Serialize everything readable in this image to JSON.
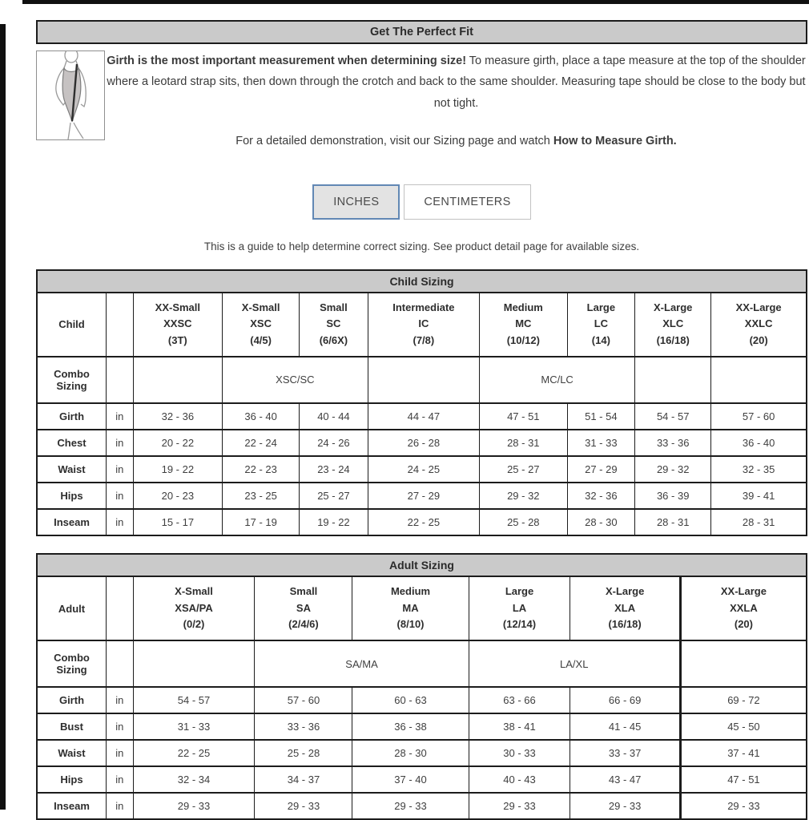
{
  "header": {
    "title": "Get The Perfect Fit"
  },
  "intro": {
    "lead_bold": "Girth is the most important measurement when determining size!",
    "lead_rest": " To measure girth, place a tape measure at the top of the shoulder where a leotard strap sits, then down through the crotch and back to the same shoulder. Measuring tape should be close to the body but not tight.",
    "demo_text": "For a detailed demonstration, visit our Sizing page and watch ",
    "demo_bold": "How to Measure Girth.",
    "figure_alt": "girth-measurement-figure"
  },
  "unit_toggle": {
    "inches_label": "INCHES",
    "centimeters_label": "CENTIMETERS",
    "selected": "INCHES"
  },
  "guide_note": "This is a guide to help determine correct sizing. See product detail page for available sizes.",
  "child_table": {
    "title": "Child Sizing",
    "row_label": "Child",
    "combo_label": "Combo Sizing",
    "columns": [
      [
        "XX-Small",
        "XXSC",
        "(3T)"
      ],
      [
        "X-Small",
        "XSC",
        "(4/5)"
      ],
      [
        "Small",
        "SC",
        "(6/6X)"
      ],
      [
        "Intermediate",
        "IC",
        "(7/8)"
      ],
      [
        "Medium",
        "MC",
        "(10/12)"
      ],
      [
        "Large",
        "LC",
        "(14)"
      ],
      [
        "X-Large",
        "XLC",
        "(16/18)"
      ],
      [
        "XX-Large",
        "XXLC",
        "(20)"
      ]
    ],
    "combo_cells": [
      {
        "span": 1,
        "text": ""
      },
      {
        "span": 2,
        "text": "XSC/SC"
      },
      {
        "span": 1,
        "text": ""
      },
      {
        "span": 2,
        "text": "MC/LC"
      },
      {
        "span": 1,
        "text": ""
      },
      {
        "span": 1,
        "text": ""
      }
    ],
    "rows": [
      {
        "label": "Girth",
        "unit": "in",
        "values": [
          "32 - 36",
          "36 - 40",
          "40 - 44",
          "44 - 47",
          "47 - 51",
          "51 - 54",
          "54 - 57",
          "57 - 60"
        ]
      },
      {
        "label": "Chest",
        "unit": "in",
        "values": [
          "20 - 22",
          "22 - 24",
          "24 - 26",
          "26 - 28",
          "28 - 31",
          "31 - 33",
          "33 - 36",
          "36 - 40"
        ]
      },
      {
        "label": "Waist",
        "unit": "in",
        "values": [
          "19 - 22",
          "22 - 23",
          "23 - 24",
          "24 - 25",
          "25 - 27",
          "27 - 29",
          "29 - 32",
          "32 - 35"
        ]
      },
      {
        "label": "Hips",
        "unit": "in",
        "values": [
          "20 - 23",
          "23 - 25",
          "25 - 27",
          "27 - 29",
          "29 - 32",
          "32 - 36",
          "36 - 39",
          "39 - 41"
        ]
      },
      {
        "label": "Inseam",
        "unit": "in",
        "values": [
          "15 - 17",
          "17 - 19",
          "19 - 22",
          "22 - 25",
          "25 - 28",
          "28 - 30",
          "28 - 31",
          "28 - 31"
        ]
      }
    ]
  },
  "adult_table": {
    "title": "Adult Sizing",
    "row_label": "Adult",
    "combo_label": "Combo Sizing",
    "columns": [
      [
        "X-Small",
        "XSA/PA",
        "(0/2)"
      ],
      [
        "Small",
        "SA",
        "(2/4/6)"
      ],
      [
        "Medium",
        "MA",
        "(8/10)"
      ],
      [
        "Large",
        "LA",
        "(12/14)"
      ],
      [
        "X-Large",
        "XLA",
        "(16/18)"
      ],
      [
        "XX-Large",
        "XXLA",
        "(20)"
      ]
    ],
    "combo_cells": [
      {
        "span": 1,
        "text": ""
      },
      {
        "span": 2,
        "text": "SA/MA"
      },
      {
        "span": 2,
        "text": "LA/XL"
      },
      {
        "span": 1,
        "text": ""
      }
    ],
    "rows": [
      {
        "label": "Girth",
        "unit": "in",
        "values": [
          "54 - 57",
          "57 - 60",
          "60 - 63",
          "63 - 66",
          "66 - 69",
          "69 - 72"
        ]
      },
      {
        "label": "Bust",
        "unit": "in",
        "values": [
          "31 - 33",
          "33 - 36",
          "36 - 38",
          "38 - 41",
          "41 - 45",
          "45 - 50"
        ]
      },
      {
        "label": "Waist",
        "unit": "in",
        "values": [
          "22 - 25",
          "25 - 28",
          "28 - 30",
          "30 - 33",
          "33 - 37",
          "37 - 41"
        ]
      },
      {
        "label": "Hips",
        "unit": "in",
        "values": [
          "32 - 34",
          "34 - 37",
          "37 - 40",
          "40 - 43",
          "43 - 47",
          "47 - 51"
        ]
      },
      {
        "label": "Inseam",
        "unit": "in",
        "values": [
          "29 - 33",
          "29 - 33",
          "29 - 33",
          "29 - 33",
          "29 - 33",
          "29 - 33"
        ]
      }
    ]
  },
  "colors": {
    "bar_bg": "#cacaca",
    "accent_border": "#6288b4",
    "table_border": "#1c1c1c"
  }
}
